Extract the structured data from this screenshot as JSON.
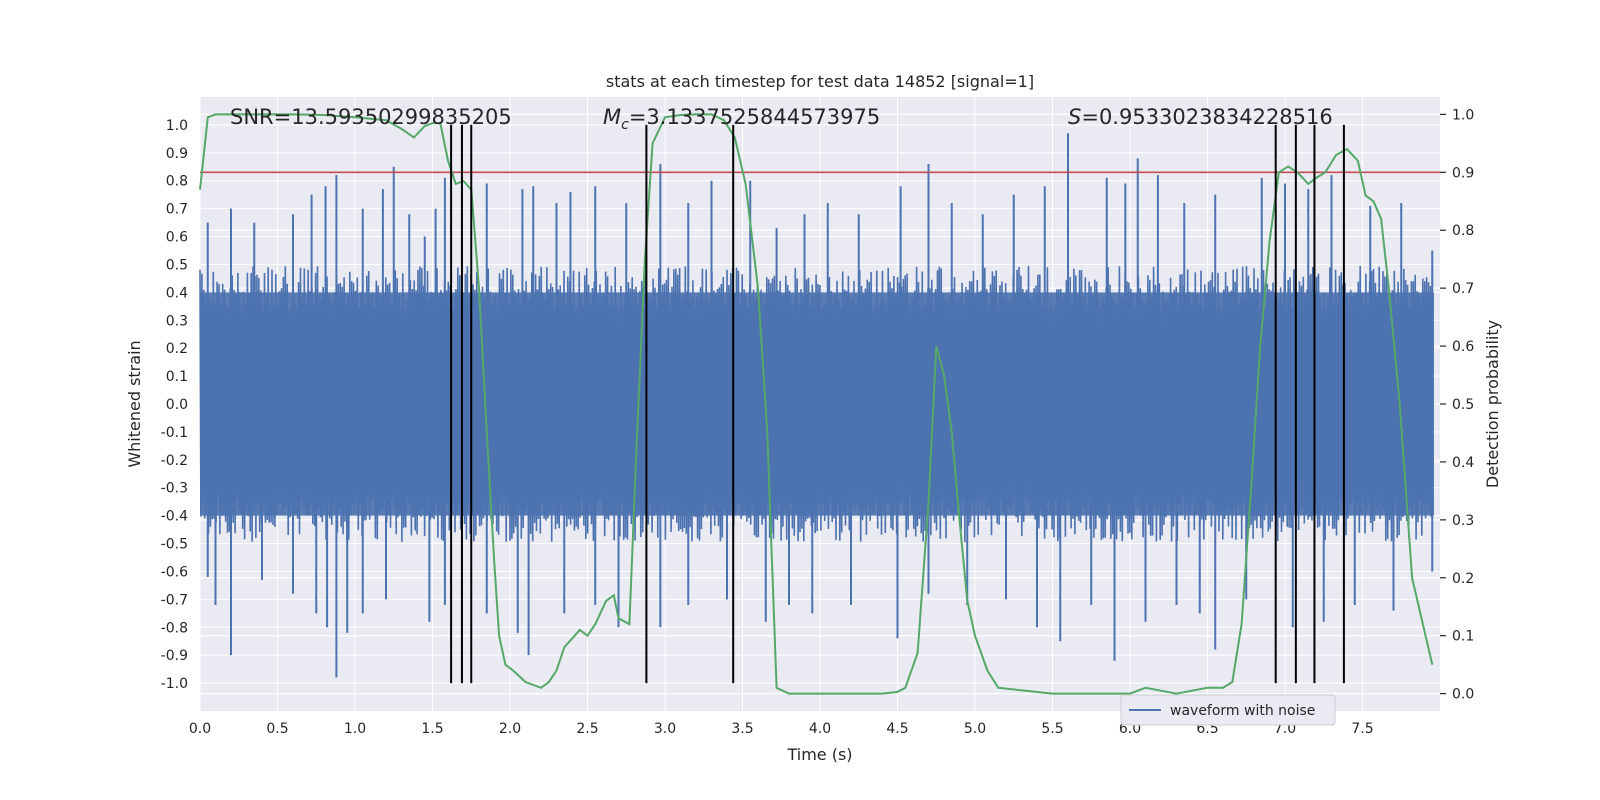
{
  "chart_data": {
    "type": "line",
    "title": "stats at each timestep for test data 14852 [signal=1]",
    "xlabel": "Time (s)",
    "ylabel": "Whitened strain",
    "y2label": "Detection probability",
    "xlim": [
      0.0,
      8.0
    ],
    "ylim": [
      -1.1,
      1.1
    ],
    "y2lim": [
      -0.03,
      1.03
    ],
    "xticks": [
      "0.0",
      "0.5",
      "1.0",
      "1.5",
      "2.0",
      "2.5",
      "3.0",
      "3.5",
      "4.0",
      "4.5",
      "5.0",
      "5.5",
      "6.0",
      "6.5",
      "7.0",
      "7.5"
    ],
    "yticks": [
      "1.0",
      "0.9",
      "0.8",
      "0.7",
      "0.6",
      "0.5",
      "0.4",
      "0.3",
      "0.2",
      "0.1",
      "0.0",
      "-0.1",
      "-0.2",
      "-0.3",
      "-0.4",
      "-0.5",
      "-0.6",
      "-0.7",
      "-0.8",
      "-0.9",
      "-1.0"
    ],
    "y2ticks": [
      "1.0",
      "0.9",
      "0.8",
      "0.7",
      "0.6",
      "0.5",
      "0.4",
      "0.3",
      "0.2",
      "0.1",
      "0.0"
    ],
    "grid": true,
    "legend": {
      "location": "lower-right",
      "entries": [
        "waveform with noise"
      ]
    },
    "annotations": {
      "snr": "SNR=13.59350299835205",
      "mc_symbol": "M",
      "mc_sub": "c",
      "mc_value": "=3.1337525844573975",
      "s_symbol": "S",
      "s_value": "=0.9533023834228516"
    },
    "threshold": {
      "axis": "y2",
      "value": 0.9,
      "color": "#c44e52"
    },
    "vertical_lines": [
      1.62,
      1.69,
      1.75,
      2.88,
      3.44,
      6.94,
      7.07,
      7.19,
      7.38
    ],
    "waveform": {
      "name": "waveform with noise",
      "color": "#4c72b0",
      "envelope": 0.45,
      "spikes_up": [
        [
          0.05,
          0.65
        ],
        [
          0.2,
          0.7
        ],
        [
          0.35,
          0.65
        ],
        [
          0.6,
          0.68
        ],
        [
          0.72,
          0.75
        ],
        [
          0.81,
          0.78
        ],
        [
          0.88,
          0.82
        ],
        [
          1.05,
          0.7
        ],
        [
          1.18,
          0.77
        ],
        [
          1.25,
          0.85
        ],
        [
          1.35,
          0.68
        ],
        [
          1.45,
          0.6
        ],
        [
          1.52,
          0.7
        ],
        [
          1.58,
          0.81
        ],
        [
          1.85,
          0.79
        ],
        [
          2.08,
          0.77
        ],
        [
          2.15,
          0.78
        ],
        [
          2.3,
          0.72
        ],
        [
          2.39,
          0.76
        ],
        [
          2.55,
          0.78
        ],
        [
          2.75,
          0.72
        ],
        [
          2.97,
          0.86
        ],
        [
          3.15,
          0.72
        ],
        [
          3.3,
          0.8
        ],
        [
          3.55,
          0.8
        ],
        [
          3.72,
          0.63
        ],
        [
          3.9,
          0.68
        ],
        [
          4.05,
          0.72
        ],
        [
          4.25,
          0.68
        ],
        [
          4.52,
          0.78
        ],
        [
          4.7,
          0.86
        ],
        [
          4.85,
          0.72
        ],
        [
          5.05,
          0.68
        ],
        [
          5.25,
          0.75
        ],
        [
          5.45,
          0.78
        ],
        [
          5.6,
          0.97
        ],
        [
          5.85,
          0.81
        ],
        [
          5.97,
          0.79
        ],
        [
          6.05,
          0.88
        ],
        [
          6.18,
          0.82
        ],
        [
          6.35,
          0.72
        ],
        [
          6.55,
          0.75
        ],
        [
          6.85,
          0.81
        ],
        [
          7.0,
          0.79
        ],
        [
          7.15,
          0.77
        ],
        [
          7.3,
          0.82
        ],
        [
          7.55,
          0.71
        ],
        [
          7.75,
          0.72
        ],
        [
          7.95,
          0.55
        ]
      ],
      "spikes_down": [
        [
          0.05,
          -0.62
        ],
        [
          0.1,
          -0.72
        ],
        [
          0.2,
          -0.9
        ],
        [
          0.4,
          -0.63
        ],
        [
          0.6,
          -0.68
        ],
        [
          0.75,
          -0.75
        ],
        [
          0.82,
          -0.8
        ],
        [
          0.88,
          -0.98
        ],
        [
          0.95,
          -0.82
        ],
        [
          1.05,
          -0.75
        ],
        [
          1.2,
          -0.7
        ],
        [
          1.48,
          -0.78
        ],
        [
          1.58,
          -0.72
        ],
        [
          1.85,
          -0.75
        ],
        [
          2.05,
          -0.82
        ],
        [
          2.12,
          -0.9
        ],
        [
          2.35,
          -0.75
        ],
        [
          2.55,
          -0.72
        ],
        [
          2.7,
          -0.8
        ],
        [
          2.97,
          -0.8
        ],
        [
          3.15,
          -0.72
        ],
        [
          3.4,
          -0.7
        ],
        [
          3.65,
          -0.78
        ],
        [
          3.8,
          -0.72
        ],
        [
          3.95,
          -0.75
        ],
        [
          4.2,
          -0.72
        ],
        [
          4.5,
          -0.84
        ],
        [
          4.7,
          -0.68
        ],
        [
          4.95,
          -0.72
        ],
        [
          5.2,
          -0.7
        ],
        [
          5.4,
          -0.8
        ],
        [
          5.55,
          -0.85
        ],
        [
          5.75,
          -0.72
        ],
        [
          5.9,
          -0.92
        ],
        [
          6.1,
          -0.78
        ],
        [
          6.3,
          -0.72
        ],
        [
          6.45,
          -0.75
        ],
        [
          6.55,
          -0.88
        ],
        [
          6.75,
          -0.7
        ],
        [
          7.05,
          -0.8
        ],
        [
          7.25,
          -0.78
        ],
        [
          7.45,
          -0.72
        ],
        [
          7.7,
          -0.74
        ],
        [
          7.95,
          -0.6
        ]
      ]
    },
    "probability": {
      "name": "detection probability",
      "color": "#55a868",
      "x": [
        0.0,
        0.05,
        0.1,
        0.2,
        0.4,
        0.6,
        0.8,
        1.0,
        1.2,
        1.3,
        1.38,
        1.45,
        1.5,
        1.55,
        1.6,
        1.65,
        1.7,
        1.75,
        1.8,
        1.85,
        1.9,
        1.93,
        1.97,
        2.02,
        2.1,
        2.2,
        2.25,
        2.3,
        2.35,
        2.45,
        2.5,
        2.55,
        2.62,
        2.67,
        2.7,
        2.77,
        2.82,
        2.87,
        2.92,
        3.0,
        3.1,
        3.2,
        3.3,
        3.38,
        3.45,
        3.52,
        3.6,
        3.66,
        3.72,
        3.8,
        4.0,
        4.2,
        4.4,
        4.5,
        4.55,
        4.63,
        4.7,
        4.75,
        4.8,
        4.85,
        4.9,
        4.95,
        5.0,
        5.08,
        5.15,
        5.5,
        5.8,
        5.9,
        6.0,
        6.1,
        6.2,
        6.3,
        6.4,
        6.5,
        6.6,
        6.66,
        6.72,
        6.78,
        6.84,
        6.9,
        6.96,
        7.02,
        7.08,
        7.15,
        7.2,
        7.26,
        7.33,
        7.4,
        7.47,
        7.52,
        7.57,
        7.62,
        7.67,
        7.74,
        7.82,
        7.95
      ],
      "y": [
        0.87,
        0.995,
        1.0,
        1.0,
        1.0,
        1.0,
        0.999,
        0.995,
        0.99,
        0.975,
        0.96,
        0.98,
        0.985,
        0.985,
        0.92,
        0.88,
        0.885,
        0.87,
        0.7,
        0.45,
        0.22,
        0.1,
        0.05,
        0.04,
        0.02,
        0.01,
        0.02,
        0.04,
        0.08,
        0.11,
        0.1,
        0.12,
        0.16,
        0.17,
        0.13,
        0.12,
        0.45,
        0.75,
        0.95,
        0.995,
        0.999,
        1.0,
        1.0,
        0.99,
        0.96,
        0.88,
        0.7,
        0.45,
        0.01,
        0.0,
        0.0,
        0.0,
        0.0,
        0.003,
        0.01,
        0.07,
        0.33,
        0.6,
        0.55,
        0.45,
        0.3,
        0.16,
        0.1,
        0.04,
        0.01,
        0.0,
        0.0,
        0.0,
        0.0,
        0.01,
        0.005,
        0.0,
        0.005,
        0.01,
        0.01,
        0.02,
        0.12,
        0.35,
        0.6,
        0.78,
        0.9,
        0.91,
        0.9,
        0.88,
        0.89,
        0.9,
        0.93,
        0.94,
        0.92,
        0.86,
        0.85,
        0.82,
        0.7,
        0.5,
        0.2,
        0.05
      ]
    }
  }
}
